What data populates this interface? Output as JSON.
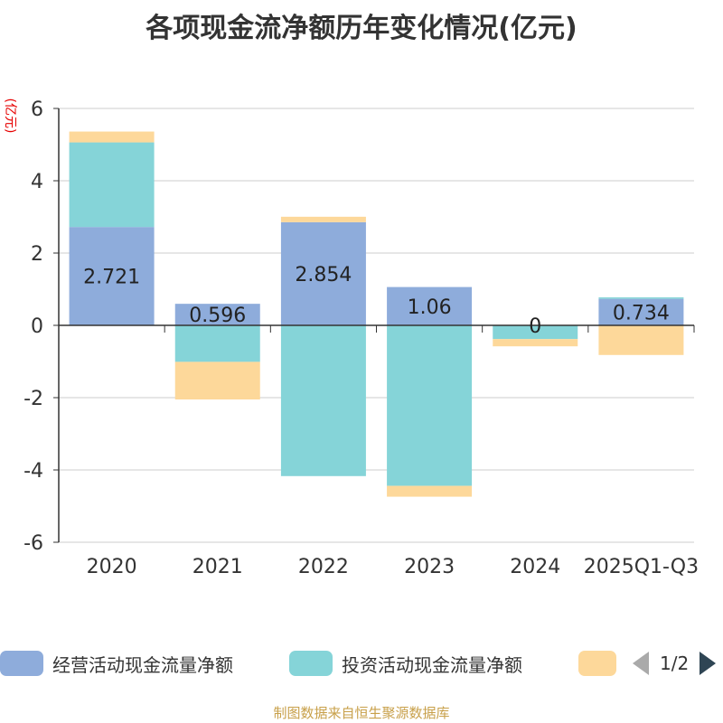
{
  "title": "各项现金流净额历年变化情况(亿元)",
  "unit_label": "(亿元)",
  "source": "制图数据来自恒生聚源数据库",
  "pager": "1/2",
  "chart_data": {
    "type": "bar",
    "stacked": true,
    "categories": [
      "2020",
      "2021",
      "2022",
      "2023",
      "2024",
      "2025Q1-Q3"
    ],
    "ylim": [
      -6,
      6
    ],
    "yticks": [
      -6,
      -4,
      -2,
      0,
      2,
      4,
      6
    ],
    "grid": true,
    "legend_position": "bottom",
    "series": [
      {
        "name": "经营活动现金流量净额",
        "color": "#8eacdb",
        "values": [
          2.721,
          0.596,
          2.854,
          1.06,
          0,
          0.734
        ]
      },
      {
        "name": "投资活动现金流量净额",
        "color": "#85d4d8",
        "values": [
          2.34,
          -1.01,
          -4.17,
          -4.44,
          -0.38,
          0.04
        ]
      },
      {
        "name": "",
        "color": "#fdd89a",
        "values": [
          0.3,
          -1.04,
          0.15,
          -0.3,
          -0.2,
          -0.82
        ]
      }
    ],
    "data_labels": [
      "2.721",
      "0.596",
      "2.854",
      "1.06",
      "0",
      "0.734"
    ]
  }
}
